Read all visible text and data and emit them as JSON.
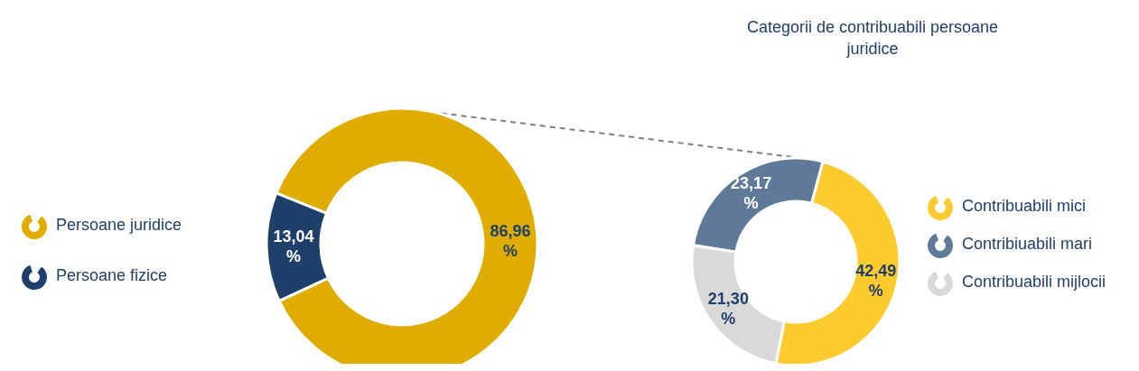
{
  "chart_data": [
    {
      "type": "donut",
      "categories": [
        "Persoane juridice",
        "Persoane fizice"
      ],
      "values": [
        86.96,
        13.04
      ],
      "colors": [
        "#e0ac00",
        "#1f3f6b"
      ],
      "value_labels": [
        "86,96 %",
        "13,04 %"
      ],
      "legend": "left"
    },
    {
      "type": "donut",
      "title": "Categorii de contribuabili persoane juridice",
      "categories": [
        "Contribuabili mici",
        "Contribiuabili mari",
        "Contribuabili mijlocii"
      ],
      "values": [
        42.49,
        23.17,
        21.3
      ],
      "colors": [
        "#fdcb2e",
        "#5f7a99",
        "#d9d9d9"
      ],
      "value_labels": [
        "42,49 %",
        "23,17 %",
        "21,30 %"
      ],
      "legend": "right"
    }
  ]
}
